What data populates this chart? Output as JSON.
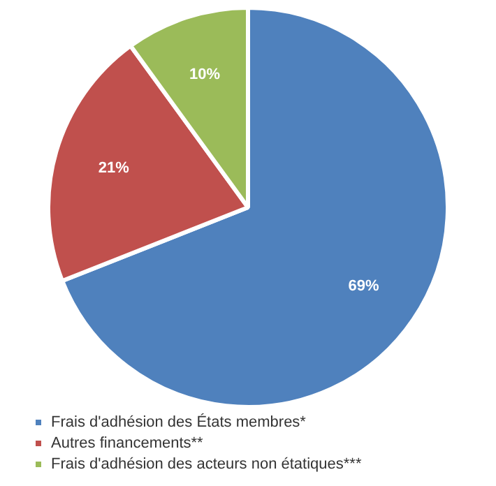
{
  "chart_data": {
    "type": "pie",
    "categories": [
      "Frais d'adhésion des États membres*",
      "Autres financements**",
      "Frais d'adhésion des acteurs non étatiques***"
    ],
    "values": [
      69,
      21,
      10
    ],
    "colors": [
      "#4f81bd",
      "#c0504d",
      "#9bbb59"
    ],
    "value_labels": [
      "69%",
      "21%",
      "10%"
    ],
    "legend": "bottom"
  }
}
